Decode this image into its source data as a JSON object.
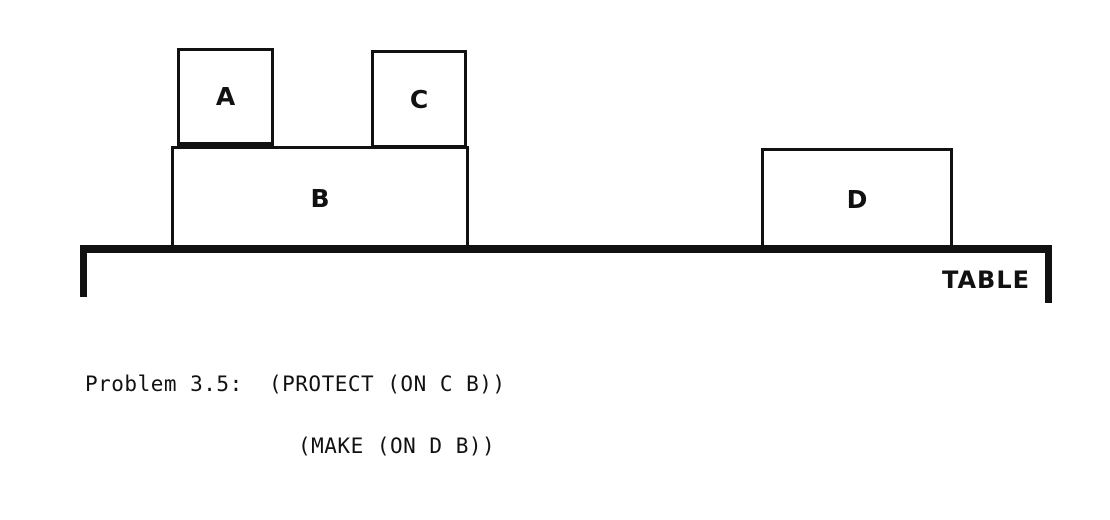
{
  "blocks": {
    "a": "A",
    "b": "B",
    "c": "C",
    "d": "D"
  },
  "table_label": "TABLE",
  "caption": {
    "line1": "Problem 3.5:  (PROTECT (ON C B))",
    "line2": "(MAKE (ON D B))"
  }
}
